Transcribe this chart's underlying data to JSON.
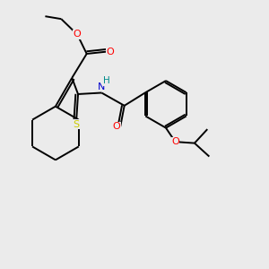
{
  "background_color": "#ebebeb",
  "figsize": [
    3.0,
    3.0
  ],
  "dpi": 100,
  "bond_color": "#000000",
  "bond_width": 1.4,
  "atom_colors": {
    "S": "#cccc00",
    "O": "#ff0000",
    "N": "#0000cd",
    "H": "#008080",
    "C": "#000000"
  },
  "xlim": [
    0,
    10
  ],
  "ylim": [
    0,
    10
  ]
}
